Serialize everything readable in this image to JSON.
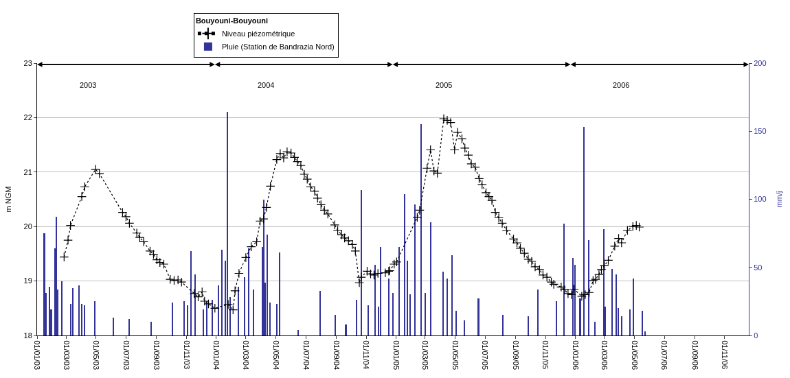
{
  "chart_data": {
    "type": "line",
    "legend_title": "Bouyouni-Bouyouni",
    "ylabel": "m NGM",
    "y2label": "mm/j",
    "xlim": [
      "2003-01-01",
      "2006-12-20"
    ],
    "xticks": [
      {
        "value": "2003-01-01",
        "label": "01/01/03"
      },
      {
        "value": "2003-03-01",
        "label": "01/03/03"
      },
      {
        "value": "2003-05-01",
        "label": "01/05/03"
      },
      {
        "value": "2003-07-01",
        "label": "01/07/03"
      },
      {
        "value": "2003-09-01",
        "label": "01/09/03"
      },
      {
        "value": "2003-11-01",
        "label": "01/11/03"
      },
      {
        "value": "2004-01-01",
        "label": "01/01/04"
      },
      {
        "value": "2004-03-01",
        "label": "01/03/04"
      },
      {
        "value": "2004-05-01",
        "label": "01/05/04"
      },
      {
        "value": "2004-07-01",
        "label": "01/07/04"
      },
      {
        "value": "2004-09-01",
        "label": "01/09/04"
      },
      {
        "value": "2004-11-01",
        "label": "01/11/04"
      },
      {
        "value": "2005-01-01",
        "label": "01/01/05"
      },
      {
        "value": "2005-03-01",
        "label": "01/03/05"
      },
      {
        "value": "2005-05-01",
        "label": "01/05/05"
      },
      {
        "value": "2005-07-01",
        "label": "01/07/05"
      },
      {
        "value": "2005-09-01",
        "label": "01/09/05"
      },
      {
        "value": "2005-11-01",
        "label": "01/11/05"
      },
      {
        "value": "2006-01-01",
        "label": "01/01/06"
      },
      {
        "value": "2006-03-01",
        "label": "01/03/06"
      },
      {
        "value": "2006-05-01",
        "label": "01/05/06"
      },
      {
        "value": "2006-07-01",
        "label": "01/07/06"
      },
      {
        "value": "2006-09-01",
        "label": "01/09/06"
      },
      {
        "value": "2006-11-01",
        "label": "01/11/06"
      }
    ],
    "ylim": [
      18,
      23
    ],
    "yticks": [
      18,
      19,
      20,
      21,
      22,
      23
    ],
    "y2lim": [
      0,
      200
    ],
    "y2ticks": [
      0,
      50,
      100,
      150,
      200
    ],
    "grid": "y",
    "legend": "top",
    "marker": "cross",
    "line_style": "dotted",
    "annotations": [
      "2003",
      "2004",
      "2005",
      "2006"
    ],
    "series": [
      {
        "name": "Niveau piézométrique",
        "color": "#000000",
        "x": [
          "2003-02-25",
          "2003-03-05",
          "2003-03-10",
          "2003-04-02",
          "2003-04-08",
          "2003-04-30",
          "2003-05-08",
          "2003-06-24",
          "2003-07-01",
          "2003-07-08",
          "2003-07-23",
          "2003-07-29",
          "2003-08-06",
          "2003-08-19",
          "2003-08-26",
          "2003-09-02",
          "2003-09-08",
          "2003-09-16",
          "2003-09-29",
          "2003-10-07",
          "2003-10-15",
          "2003-10-22",
          "2003-11-17",
          "2003-11-25",
          "2003-12-03",
          "2003-12-08",
          "2003-12-16",
          "2003-12-29",
          "2004-01-25",
          "2004-02-04",
          "2004-02-08",
          "2004-02-16",
          "2004-03-01",
          "2004-03-12",
          "2004-03-23",
          "2004-03-30",
          "2004-04-06",
          "2004-04-12",
          "2004-04-20",
          "2004-05-03",
          "2004-05-10",
          "2004-05-17",
          "2004-05-24",
          "2004-06-01",
          "2004-06-08",
          "2004-06-14",
          "2004-06-21",
          "2004-06-28",
          "2004-07-04",
          "2004-07-11",
          "2004-07-19",
          "2004-07-25",
          "2004-08-01",
          "2004-08-08",
          "2004-08-15",
          "2004-08-29",
          "2004-09-04",
          "2004-09-12",
          "2004-09-18",
          "2004-09-26",
          "2004-10-04",
          "2004-10-10",
          "2004-10-18",
          "2004-10-22",
          "2004-11-03",
          "2004-11-10",
          "2004-11-17",
          "2004-11-25",
          "2004-12-10",
          "2004-12-17",
          "2004-12-19",
          "2004-12-28",
          "2005-01-02",
          "2005-02-13",
          "2005-02-18",
          "2005-03-05",
          "2005-03-12",
          "2005-03-19",
          "2005-03-26",
          "2005-04-08",
          "2005-04-15",
          "2005-04-22",
          "2005-04-30",
          "2005-05-06",
          "2005-05-15",
          "2005-05-21",
          "2005-05-28",
          "2005-06-03",
          "2005-06-11",
          "2005-06-19",
          "2005-06-25",
          "2005-07-03",
          "2005-07-09",
          "2005-07-15",
          "2005-07-22",
          "2005-07-29",
          "2005-08-05",
          "2005-08-14",
          "2005-08-28",
          "2005-09-04",
          "2005-09-11",
          "2005-09-19",
          "2005-09-27",
          "2005-10-04",
          "2005-10-11",
          "2005-10-20",
          "2005-10-27",
          "2005-11-04",
          "2005-11-13",
          "2005-11-18",
          "2005-12-03",
          "2005-12-10",
          "2005-12-17",
          "2005-12-24",
          "2005-12-29",
          "2006-01-14",
          "2006-01-21",
          "2006-01-29",
          "2006-02-06",
          "2006-02-11",
          "2006-02-18",
          "2006-02-23",
          "2006-03-01",
          "2006-03-09",
          "2006-03-22",
          "2006-03-30",
          "2006-04-05",
          "2006-04-17",
          "2006-04-28",
          "2006-05-05",
          "2006-05-11"
        ],
        "values": [
          19.44,
          19.75,
          20.02,
          20.55,
          20.73,
          21.05,
          20.97,
          20.26,
          20.18,
          20.06,
          19.88,
          19.8,
          19.72,
          19.55,
          19.49,
          19.39,
          19.34,
          19.31,
          19.03,
          19.01,
          19.02,
          18.98,
          18.77,
          18.71,
          18.8,
          18.63,
          18.58,
          18.5,
          18.57,
          18.47,
          18.82,
          19.14,
          19.43,
          19.63,
          19.72,
          20.1,
          20.14,
          20.35,
          20.74,
          21.23,
          21.34,
          21.26,
          21.37,
          21.35,
          21.27,
          21.19,
          21.12,
          20.96,
          20.87,
          20.73,
          20.65,
          20.52,
          20.4,
          20.3,
          20.23,
          20.03,
          19.93,
          19.85,
          19.79,
          19.74,
          19.67,
          19.55,
          18.97,
          19.07,
          19.18,
          19.13,
          19.11,
          19.14,
          19.15,
          19.18,
          19.19,
          19.31,
          19.35,
          20.17,
          20.3,
          21.07,
          21.41,
          21.02,
          20.98,
          21.98,
          21.95,
          21.91,
          21.41,
          21.73,
          21.61,
          21.44,
          21.31,
          21.15,
          21.09,
          20.88,
          20.77,
          20.62,
          20.55,
          20.48,
          20.26,
          20.16,
          20.06,
          19.93,
          19.77,
          19.7,
          19.6,
          19.51,
          19.4,
          19.36,
          19.26,
          19.21,
          19.11,
          19.07,
          18.98,
          18.94,
          18.89,
          18.84,
          18.77,
          18.75,
          18.85,
          18.72,
          18.75,
          18.79,
          19.01,
          19.03,
          19.12,
          19.21,
          19.28,
          19.38,
          19.64,
          19.78,
          19.7,
          19.93,
          20.0,
          20.02,
          19.99
        ]
      },
      {
        "name": "Pluie (Station de Bandrazia Nord)",
        "type": "bar",
        "axis": "y2",
        "color": "#333399",
        "x": [
          "2003-01-16",
          "2003-01-19",
          "2003-01-26",
          "2003-01-30",
          "2003-02-07",
          "2003-02-09",
          "2003-02-12",
          "2003-02-21",
          "2003-03-11",
          "2003-03-15",
          "2003-03-28",
          "2003-04-02",
          "2003-04-08",
          "2003-04-29",
          "2003-06-06",
          "2003-07-08",
          "2003-08-22",
          "2003-10-04",
          "2003-10-28",
          "2003-11-03",
          "2003-11-10",
          "2003-11-19",
          "2003-12-06",
          "2003-12-13",
          "2003-12-24",
          "2004-01-05",
          "2004-01-13",
          "2004-01-20",
          "2004-01-24",
          "2004-01-29",
          "2004-02-15",
          "2004-02-28",
          "2004-03-07",
          "2004-03-17",
          "2004-04-04",
          "2004-04-07",
          "2004-04-10",
          "2004-04-14",
          "2004-04-19",
          "2004-05-04",
          "2004-05-09",
          "2004-06-16",
          "2004-07-31",
          "2004-08-30",
          "2004-09-21",
          "2004-10-13",
          "2004-10-22",
          "2004-11-06",
          "2004-11-20",
          "2004-11-26",
          "2004-12-01",
          "2004-12-17",
          "2004-12-26",
          "2005-01-07",
          "2005-01-18",
          "2005-01-24",
          "2005-01-30",
          "2005-02-09",
          "2005-02-21",
          "2005-03-01",
          "2005-03-13",
          "2005-04-07",
          "2005-04-15",
          "2005-04-25",
          "2005-05-03",
          "2005-05-20",
          "2005-06-18",
          "2005-08-07",
          "2005-09-27",
          "2005-10-17",
          "2005-11-24",
          "2005-12-09",
          "2005-12-27",
          "2006-01-01",
          "2006-01-11",
          "2006-01-19",
          "2006-01-28",
          "2006-02-10",
          "2006-02-28",
          "2006-03-03",
          "2006-03-17",
          "2006-03-25",
          "2006-03-29",
          "2006-04-05",
          "2006-04-23",
          "2006-04-30",
          "2006-05-18",
          "2006-05-23"
        ],
        "values": [
          75,
          31,
          36,
          19,
          64,
          87,
          34,
          40,
          23,
          35,
          37,
          23,
          22,
          25,
          13,
          12,
          10,
          24,
          25,
          22,
          62,
          45,
          19,
          25,
          26,
          37,
          63,
          55,
          164,
          28,
          36,
          43,
          64,
          34,
          65,
          100,
          39,
          74,
          24,
          23,
          61,
          4,
          33,
          15,
          8,
          26,
          107,
          22,
          52,
          21,
          65,
          42,
          31,
          65,
          104,
          55,
          30,
          96,
          155,
          31,
          83,
          47,
          42,
          59,
          18,
          11,
          27,
          15,
          14,
          34,
          25,
          82,
          57,
          52,
          27,
          153,
          70,
          10,
          78,
          21,
          49,
          45,
          20,
          14,
          19,
          42,
          18,
          3
        ]
      }
    ]
  }
}
